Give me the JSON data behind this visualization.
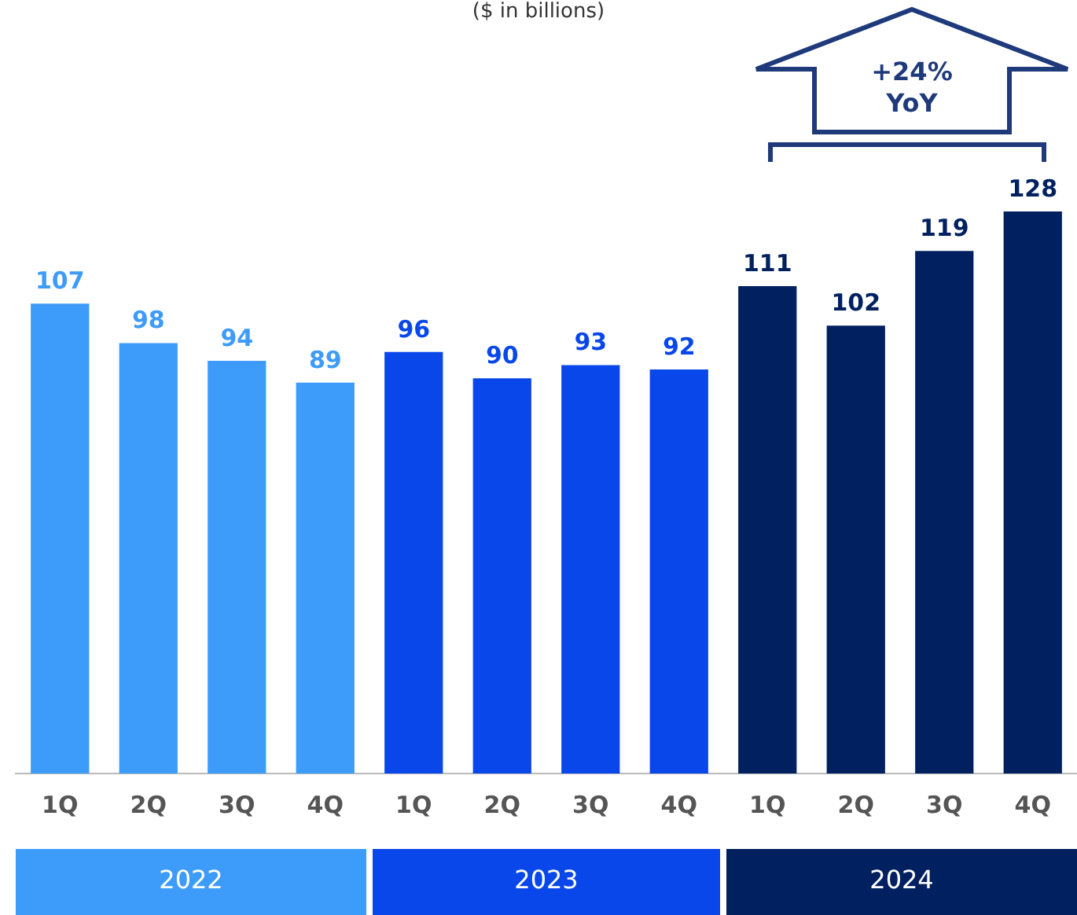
{
  "chart_data": {
    "type": "bar",
    "title": "($ in billions)",
    "categories": [
      "1Q",
      "2Q",
      "3Q",
      "4Q",
      "1Q",
      "2Q",
      "3Q",
      "4Q",
      "1Q",
      "2Q",
      "3Q",
      "4Q"
    ],
    "values": [
      107,
      98,
      94,
      89,
      96,
      90,
      93,
      92,
      111,
      102,
      119,
      128
    ],
    "colors": [
      "#3d9bfa",
      "#3d9bfa",
      "#3d9bfa",
      "#3d9bfa",
      "#0a47ea",
      "#0a47ea",
      "#0a47ea",
      "#0a47ea",
      "#00205f",
      "#00205f",
      "#00205f",
      "#00205f"
    ],
    "data_labels": true,
    "grid": false,
    "legend": false,
    "annotations": [
      "+24% YoY",
      "2022",
      "2023",
      "2024"
    ]
  }
}
